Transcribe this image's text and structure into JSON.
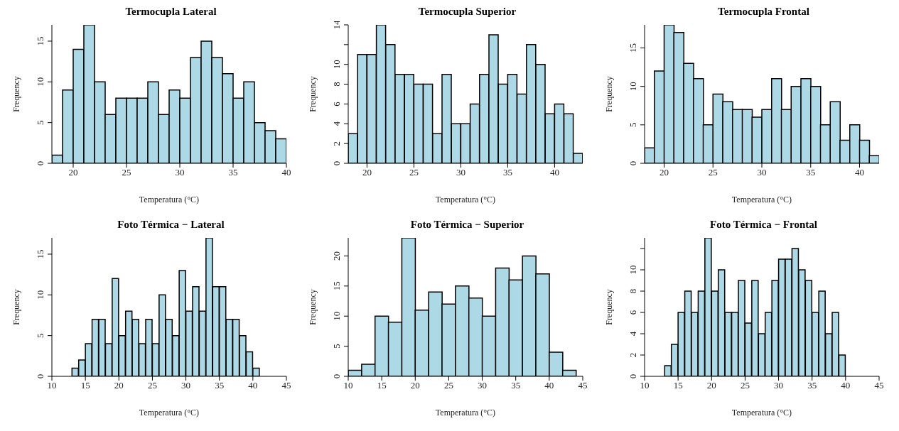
{
  "chart_data": [
    {
      "type": "histogram",
      "title": "Termocupla Lateral",
      "xlabel": "Temperatura (°C)",
      "ylabel": "Frequency",
      "color": "#add8e6",
      "bins": [
        18,
        19,
        20,
        21,
        22,
        23,
        24,
        25,
        26,
        27,
        28,
        29,
        30,
        31,
        32,
        33,
        34,
        35,
        36,
        37,
        38,
        39,
        40
      ],
      "values": [
        1,
        9,
        14,
        17,
        10,
        6,
        8,
        8,
        8,
        10,
        6,
        9,
        8,
        13,
        15,
        13,
        11,
        8,
        10,
        5,
        4,
        3
      ],
      "xlim": [
        18,
        40
      ],
      "xticks": [
        20,
        25,
        30,
        35,
        40
      ],
      "ylim": [
        0,
        17
      ],
      "yticks": [
        0,
        5,
        10,
        15
      ]
    },
    {
      "type": "histogram",
      "title": "Termocupla Superior",
      "xlabel": "Temperatura (°C)",
      "ylabel": "Frequency",
      "color": "#add8e6",
      "bins": [
        18,
        19,
        20,
        21,
        22,
        23,
        24,
        25,
        26,
        27,
        28,
        29,
        30,
        31,
        32,
        33,
        34,
        35,
        36,
        37,
        38,
        39,
        40,
        41,
        42,
        43
      ],
      "values": [
        3,
        11,
        11,
        14,
        12,
        9,
        9,
        8,
        8,
        3,
        9,
        4,
        4,
        6,
        9,
        13,
        8,
        9,
        7,
        12,
        10,
        5,
        6,
        5,
        1
      ],
      "xlim": [
        18,
        43
      ],
      "xticks": [
        20,
        25,
        30,
        35,
        40
      ],
      "ylim": [
        0,
        14
      ],
      "yticks": [
        0,
        2,
        4,
        6,
        8,
        10,
        {
          "value": 12,
          "label": null
        },
        14
      ]
    },
    {
      "type": "histogram",
      "title": "Termocupla Frontal",
      "xlabel": "Temperatura (°C)",
      "ylabel": "Frequency",
      "color": "#add8e6",
      "bins": [
        18,
        19,
        20,
        21,
        22,
        23,
        24,
        25,
        26,
        27,
        28,
        29,
        30,
        31,
        32,
        33,
        34,
        35,
        36,
        37,
        38,
        39,
        40,
        41,
        42
      ],
      "values": [
        2,
        12,
        18,
        17,
        13,
        11,
        5,
        9,
        8,
        7,
        7,
        6,
        7,
        11,
        7,
        10,
        11,
        10,
        5,
        8,
        3,
        5,
        3,
        1
      ],
      "xlim": [
        18,
        42
      ],
      "xticks": [
        20,
        25,
        30,
        35,
        40
      ],
      "ylim": [
        0,
        18
      ],
      "yticks": [
        0,
        5,
        10,
        15
      ]
    },
    {
      "type": "histogram",
      "title": "Foto Térmica − Lateral",
      "xlabel": "Temperatura (°C)",
      "ylabel": "Frequency",
      "color": "#add8e6",
      "bins": [
        13,
        14,
        15,
        16,
        17,
        18,
        19,
        20,
        21,
        22,
        23,
        24,
        25,
        26,
        27,
        28,
        29,
        30,
        31,
        32,
        33,
        34,
        35,
        36,
        37,
        38,
        39,
        40,
        41
      ],
      "values": [
        1,
        2,
        4,
        7,
        7,
        4,
        12,
        5,
        8,
        7,
        4,
        7,
        4,
        10,
        7,
        5,
        13,
        8,
        11,
        8,
        17,
        11,
        11,
        7,
        7,
        5,
        3,
        1
      ],
      "xlim": [
        10,
        45
      ],
      "xticks": [
        10,
        15,
        20,
        25,
        30,
        35,
        40,
        45
      ],
      "ylim": [
        0,
        17
      ],
      "yticks": [
        0,
        5,
        10,
        15
      ]
    },
    {
      "type": "histogram",
      "title": "Foto Térmica − Superior",
      "xlabel": "Temperatura (°C)",
      "ylabel": "Frequency",
      "color": "#add8e6",
      "bins": [
        10,
        12,
        14,
        16,
        18,
        20,
        22,
        24,
        26,
        28,
        30,
        32,
        34,
        36,
        38,
        40,
        42,
        44
      ],
      "values": [
        1,
        2,
        10,
        9,
        23,
        11,
        14,
        12,
        15,
        13,
        10,
        18,
        16,
        20,
        17,
        4,
        1
      ],
      "xlim": [
        10,
        45
      ],
      "xticks": [
        10,
        15,
        20,
        25,
        30,
        35,
        40,
        45
      ],
      "ylim": [
        0,
        23
      ],
      "yticks": [
        0,
        5,
        10,
        15,
        20
      ]
    },
    {
      "type": "histogram",
      "title": "Foto Térmica − Frontal",
      "xlabel": "Temperatura (°C)",
      "ylabel": "Frequency",
      "color": "#add8e6",
      "bins": [
        13,
        14,
        15,
        16,
        17,
        18,
        19,
        20,
        21,
        22,
        23,
        24,
        25,
        26,
        27,
        28,
        29,
        30,
        31,
        32,
        33,
        34,
        35,
        36,
        37,
        38,
        39,
        40
      ],
      "values": [
        1,
        3,
        6,
        8,
        6,
        8,
        13,
        8,
        10,
        6,
        6,
        9,
        5,
        9,
        4,
        6,
        9,
        11,
        11,
        12,
        10,
        9,
        6,
        8,
        4,
        6,
        2
      ],
      "xlim": [
        10,
        45
      ],
      "xticks": [
        10,
        15,
        20,
        25,
        30,
        35,
        40,
        45
      ],
      "ylim": [
        0,
        13
      ],
      "yticks": [
        0,
        2,
        4,
        6,
        8,
        10,
        {
          "value": 12,
          "label": null
        }
      ]
    }
  ]
}
